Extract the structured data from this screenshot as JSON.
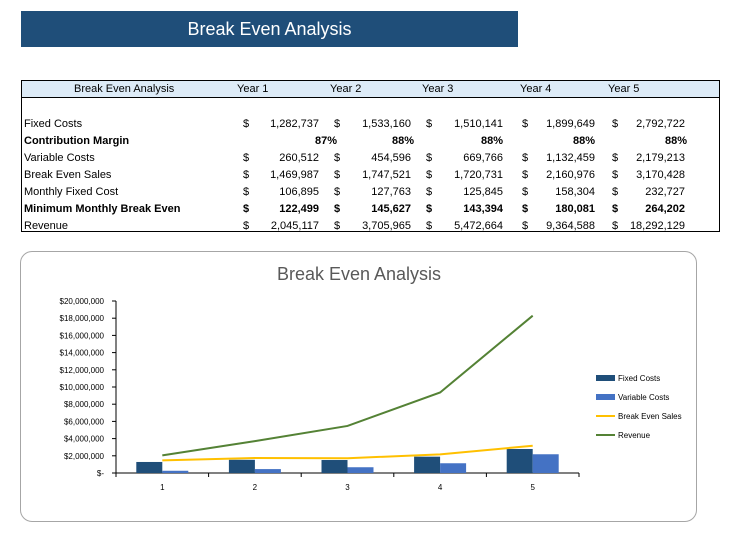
{
  "banner_title": "Break Even Analysis",
  "table": {
    "headers": [
      "Break Even Analysis",
      "Year 1",
      "Year 2",
      "Year 3",
      "Year 4",
      "Year 5"
    ],
    "rows": [
      {
        "label": "Fixed Costs",
        "bold": false,
        "currency": true,
        "values": [
          "1,282,737",
          "1,533,160",
          "1,510,141",
          "1,899,649",
          "2,792,722"
        ]
      },
      {
        "label": "Contribution Margin",
        "bold": true,
        "currency": false,
        "values": [
          "87%",
          "88%",
          "88%",
          "88%",
          "88%"
        ]
      },
      {
        "label": "Variable Costs",
        "bold": false,
        "currency": true,
        "values": [
          "260,512",
          "454,596",
          "669,766",
          "1,132,459",
          "2,179,213"
        ]
      },
      {
        "label": "Break Even Sales",
        "bold": false,
        "currency": true,
        "values": [
          "1,469,987",
          "1,747,521",
          "1,720,731",
          "2,160,976",
          "3,170,428"
        ]
      },
      {
        "label": "Monthly Fixed Cost",
        "bold": false,
        "currency": true,
        "values": [
          "106,895",
          "127,763",
          "125,845",
          "158,304",
          "232,727"
        ]
      },
      {
        "label": "Minimum Monthly Break Even",
        "bold": true,
        "currency": true,
        "values": [
          "122,499",
          "145,627",
          "143,394",
          "180,081",
          "264,202"
        ]
      },
      {
        "label": "Revenue",
        "bold": false,
        "currency": true,
        "values": [
          "2,045,117",
          "3,705,965",
          "5,472,664",
          "9,364,588",
          "18,292,129"
        ]
      }
    ],
    "currency_symbol": "$"
  },
  "chart_data": {
    "type": "bar",
    "title": "Break Even Analysis",
    "categories": [
      "1",
      "2",
      "3",
      "4",
      "5"
    ],
    "ylim": [
      0,
      20000000
    ],
    "yticks": [
      "$-",
      "$2,000,000",
      "$4,000,000",
      "$6,000,000",
      "$8,000,000",
      "$10,000,000",
      "$12,000,000",
      "$14,000,000",
      "$16,000,000",
      "$18,000,000",
      "$20,000,000"
    ],
    "legend_position": "right",
    "grid": false,
    "series": [
      {
        "name": "Fixed Costs",
        "kind": "bar",
        "color": "#1f4e79",
        "values": [
          1282737,
          1533160,
          1510141,
          1899649,
          2792722
        ]
      },
      {
        "name": "Variable Costs",
        "kind": "bar",
        "color": "#4472c4",
        "values": [
          260512,
          454596,
          669766,
          1132459,
          2179213
        ]
      },
      {
        "name": "Break Even Sales",
        "kind": "line",
        "color": "#ffc000",
        "values": [
          1469987,
          1747521,
          1720731,
          2160976,
          3170428
        ]
      },
      {
        "name": "Revenue",
        "kind": "line",
        "color": "#548235",
        "values": [
          2045117,
          3705965,
          5472664,
          9364588,
          18292129
        ]
      }
    ]
  }
}
